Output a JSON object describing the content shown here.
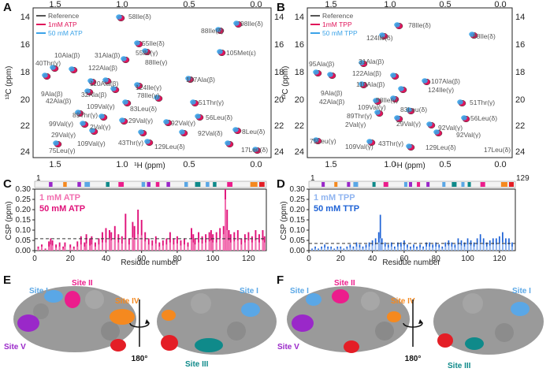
{
  "panels": {
    "A": {
      "label": "A",
      "legend": [
        "Reference",
        "1mM ATP",
        "50 mM ATP"
      ],
      "legend_colors": [
        "#555555",
        "#e0145a",
        "#3ba3e8"
      ],
      "x_ticks": [
        "1.5",
        "1.0",
        "0.5",
        "0.0"
      ],
      "y_ticks": [
        "14",
        "16",
        "18",
        "20",
        "22",
        "24"
      ],
      "xlabel": "¹H (ppm)",
      "ylabel": "¹³C (ppm)",
      "annotations": [
        "58Ile(δ)",
        "98Ile(δ)",
        "88Ile(δ)",
        "55Ile(δ)",
        "105Met(ε)",
        "55Ile(γ)",
        "31Ala(β)",
        "10Ala(β)",
        "88Ile(γ)",
        "122Ala(β)",
        "40Thr(γ)",
        "110Ala(β)",
        "107Ala(β)",
        "9Ala(β)",
        "32Ala(β)",
        "124Ile(γ)",
        "42Ala(β)",
        "78Ile(γ)",
        "109Val(γ)",
        "83Leu(δ)",
        "51Thr(γ)",
        "89Thr(γ)",
        "29Val(γ)",
        "99Val(γ)",
        "2Val(γ)",
        "56Leu(δ)",
        "92Val(γ)",
        "29Val(γ)",
        "92Val(δ)",
        "8Leu(δ)",
        "109Val(γ)",
        "43Thr(γ)",
        "129Leu(δ)",
        "75Leu(γ)",
        "17Leu(δ)"
      ]
    },
    "B": {
      "label": "B",
      "legend": [
        "Reference",
        "1mM TPP",
        "50 mM TPP"
      ],
      "legend_colors": [
        "#555555",
        "#e0145a",
        "#3ba3e8"
      ],
      "x_ticks": [
        "1.5",
        "1.0",
        "0.5",
        "0.0"
      ],
      "y_ticks": [
        "14",
        "16",
        "18",
        "20",
        "22",
        "24"
      ],
      "xlabel": "¹H (ppm)",
      "ylabel": "¹³C (ppm)",
      "annotations": [
        "78Ile(δ)",
        "124Ile(δ)",
        "88Ile(δ)",
        "95Ala(β)",
        "31Ala(β)",
        "122Ala(β)",
        "107Ala(β)",
        "110Ala(β)",
        "9Ala(β)",
        "124Ile(γ)",
        "42Ala(β)",
        "58Ile(γ)",
        "109Val(γ)",
        "83Leu(δ)",
        "51Thr(γ)",
        "89Thr(γ)",
        "2Val(γ)",
        "29Val(γ)",
        "92Val(γ)",
        "56Leu(δ)",
        "92Val(γ)",
        "75Leu(γ)",
        "109Val(γ)",
        "43Thr(γ)",
        "129Leu(δ)",
        "17Leu(δ)"
      ]
    },
    "C": {
      "label": "C",
      "legend": [
        "1 mM ATP",
        "50 mM ATP"
      ],
      "legend_colors": [
        "#f26fb0",
        "#e0127a"
      ],
      "ylabel": "CSP (ppm)",
      "xlabel": "Residue number",
      "y_ticks": [
        "0.00",
        "0.05",
        "0.10",
        "0.15",
        "0.20",
        "0.25",
        "0.30"
      ],
      "x_ticks": [
        "0",
        "20",
        "40",
        "60",
        "80",
        "100",
        "120"
      ],
      "range_start": "1",
      "range_end": "129"
    },
    "D": {
      "label": "D",
      "legend": [
        "1 mM TPP",
        "50 mM TTP"
      ],
      "legend_colors": [
        "#8fb4f0",
        "#1f63d6"
      ],
      "ylabel": "CSP (ppm)",
      "xlabel": "Residue number",
      "y_ticks": [
        "0.00",
        "0.05",
        "0.10",
        "0.15",
        "0.20",
        "0.25",
        "0.30"
      ],
      "x_ticks": [
        "0",
        "20",
        "40",
        "60",
        "80",
        "100",
        "120"
      ],
      "range_start": "1",
      "range_end": "129"
    },
    "E": {
      "label": "E",
      "sites": [
        "Site I",
        "Site II",
        "Site IV",
        "Site I",
        "Site V",
        "Site III"
      ],
      "rotation": "180°"
    },
    "F": {
      "label": "F",
      "sites": [
        "Site I",
        "Site II",
        "Site IV",
        "Site I",
        "Site V",
        "Site III"
      ],
      "rotation": "180°"
    }
  },
  "colors": {
    "site1": "#5aa7e6",
    "site2": "#ec1d8c",
    "site3": "#0f8a8a",
    "site4": "#f5891f",
    "site5": "#9a28c9",
    "surface": "#9a9a9a",
    "red_patch": "#e41e26"
  },
  "chart_data": [
    {
      "type": "bar",
      "panel": "C",
      "title": "",
      "xlabel": "Residue number",
      "ylabel": "CSP (ppm)",
      "xlim": [
        0,
        130
      ],
      "ylim": [
        0,
        0.3
      ],
      "threshold": 0.058,
      "series": [
        {
          "name": "1 mM ATP",
          "x": [
            2,
            4,
            6,
            8,
            9,
            10,
            12,
            14,
            16,
            17,
            20,
            22,
            24,
            26,
            28,
            29,
            31,
            32,
            34,
            36,
            38,
            40,
            42,
            43,
            45,
            47,
            49,
            51,
            53,
            55,
            56,
            58,
            60,
            62,
            64,
            66,
            68,
            70,
            72,
            74,
            76,
            78,
            80,
            82,
            84,
            86,
            88,
            89,
            90,
            92,
            94,
            96,
            98,
            99,
            100,
            102,
            104,
            106,
            107,
            108,
            109,
            110,
            112,
            114,
            116,
            118,
            120,
            122,
            124,
            126,
            128,
            129
          ],
          "values": [
            0.01,
            0.02,
            0.005,
            0.02,
            0.03,
            0.025,
            0.015,
            0.02,
            0.01,
            0.02,
            0.015,
            0.01,
            0.02,
            0.03,
            0.02,
            0.035,
            0.025,
            0.03,
            0.02,
            0.03,
            0.04,
            0.04,
            0.06,
            0.05,
            0.055,
            0.04,
            0.035,
            0.06,
            0.03,
            0.065,
            0.06,
            0.08,
            0.075,
            0.045,
            0.03,
            0.025,
            0.035,
            0.02,
            0.025,
            0.03,
            0.04,
            0.03,
            0.035,
            0.025,
            0.03,
            0.02,
            0.06,
            0.04,
            0.03,
            0.04,
            0.035,
            0.04,
            0.045,
            0.05,
            0.04,
            0.04,
            0.06,
            0.08,
            0.25,
            0.1,
            0.05,
            0.04,
            0.045,
            0.05,
            0.03,
            0.04,
            0.05,
            0.04,
            0.05,
            0.04,
            0.05,
            0.04
          ]
        },
        {
          "name": "50 mM ATP",
          "x": [
            2,
            4,
            6,
            8,
            9,
            10,
            12,
            14,
            16,
            17,
            20,
            22,
            24,
            26,
            28,
            29,
            31,
            32,
            34,
            36,
            38,
            40,
            42,
            43,
            45,
            47,
            49,
            51,
            53,
            55,
            56,
            58,
            60,
            62,
            64,
            66,
            68,
            70,
            72,
            74,
            76,
            78,
            80,
            82,
            84,
            86,
            88,
            89,
            90,
            92,
            94,
            96,
            98,
            99,
            100,
            102,
            104,
            106,
            107,
            108,
            109,
            110,
            112,
            114,
            116,
            118,
            120,
            122,
            124,
            126,
            128,
            129
          ],
          "values": [
            0.02,
            0.03,
            0.01,
            0.045,
            0.06,
            0.05,
            0.03,
            0.04,
            0.02,
            0.04,
            0.03,
            0.02,
            0.045,
            0.07,
            0.04,
            0.08,
            0.06,
            0.07,
            0.04,
            0.06,
            0.09,
            0.11,
            0.1,
            0.09,
            0.12,
            0.08,
            0.07,
            0.18,
            0.06,
            0.14,
            0.12,
            0.2,
            0.15,
            0.09,
            0.06,
            0.05,
            0.07,
            0.04,
            0.05,
            0.06,
            0.09,
            0.06,
            0.07,
            0.05,
            0.06,
            0.04,
            0.11,
            0.08,
            0.06,
            0.09,
            0.07,
            0.08,
            0.09,
            0.1,
            0.08,
            0.09,
            0.11,
            0.12,
            0.3,
            0.2,
            0.1,
            0.08,
            0.09,
            0.1,
            0.06,
            0.08,
            0.09,
            0.07,
            0.1,
            0.08,
            0.1,
            0.07
          ]
        }
      ]
    },
    {
      "type": "bar",
      "panel": "D",
      "title": "",
      "xlabel": "Residue number",
      "ylabel": "CSP (ppm)",
      "xlim": [
        0,
        130
      ],
      "ylim": [
        0,
        0.3
      ],
      "threshold": 0.035,
      "series": [
        {
          "name": "1 mM TPP",
          "x": [
            2,
            4,
            6,
            8,
            10,
            12,
            14,
            16,
            18,
            20,
            22,
            24,
            26,
            28,
            30,
            32,
            34,
            36,
            38,
            40,
            42,
            44,
            45,
            46,
            48,
            50,
            52,
            54,
            56,
            58,
            60,
            62,
            64,
            66,
            68,
            70,
            72,
            74,
            76,
            78,
            80,
            82,
            84,
            86,
            88,
            90,
            92,
            94,
            96,
            98,
            100,
            102,
            104,
            106,
            108,
            110,
            112,
            114,
            116,
            118,
            120,
            122,
            124,
            126,
            128
          ],
          "values": [
            0.005,
            0.01,
            0.005,
            0.01,
            0.015,
            0.01,
            0.01,
            0.005,
            0.01,
            0.01,
            0.005,
            0.01,
            0.015,
            0.01,
            0.02,
            0.015,
            0.01,
            0.015,
            0.02,
            0.025,
            0.03,
            0.04,
            0.06,
            0.03,
            0.02,
            0.015,
            0.02,
            0.01,
            0.02,
            0.02,
            0.025,
            0.015,
            0.01,
            0.015,
            0.01,
            0.015,
            0.01,
            0.02,
            0.02,
            0.015,
            0.02,
            0.015,
            0.01,
            0.02,
            0.025,
            0.02,
            0.015,
            0.03,
            0.025,
            0.02,
            0.03,
            0.025,
            0.02,
            0.03,
            0.04,
            0.03,
            0.02,
            0.025,
            0.03,
            0.03,
            0.035,
            0.04,
            0.03,
            0.03,
            0.02
          ]
        },
        {
          "name": "50 mM TTP",
          "x": [
            2,
            4,
            6,
            8,
            10,
            12,
            14,
            16,
            18,
            20,
            22,
            24,
            26,
            28,
            30,
            32,
            34,
            36,
            38,
            40,
            42,
            44,
            45,
            46,
            48,
            50,
            52,
            54,
            56,
            58,
            60,
            62,
            64,
            66,
            68,
            70,
            72,
            74,
            76,
            78,
            80,
            82,
            84,
            86,
            88,
            90,
            92,
            94,
            96,
            98,
            100,
            102,
            104,
            106,
            108,
            110,
            112,
            114,
            116,
            118,
            120,
            122,
            124,
            126,
            128
          ],
          "values": [
            0.01,
            0.02,
            0.01,
            0.02,
            0.03,
            0.02,
            0.02,
            0.01,
            0.02,
            0.02,
            0.01,
            0.02,
            0.03,
            0.02,
            0.04,
            0.03,
            0.02,
            0.03,
            0.04,
            0.05,
            0.06,
            0.09,
            0.175,
            0.06,
            0.04,
            0.03,
            0.04,
            0.02,
            0.04,
            0.04,
            0.05,
            0.03,
            0.02,
            0.03,
            0.02,
            0.03,
            0.02,
            0.04,
            0.04,
            0.03,
            0.04,
            0.03,
            0.02,
            0.04,
            0.05,
            0.04,
            0.03,
            0.06,
            0.05,
            0.04,
            0.06,
            0.05,
            0.04,
            0.06,
            0.08,
            0.06,
            0.04,
            0.05,
            0.06,
            0.06,
            0.07,
            0.09,
            0.06,
            0.06,
            0.04
          ]
        }
      ]
    }
  ]
}
